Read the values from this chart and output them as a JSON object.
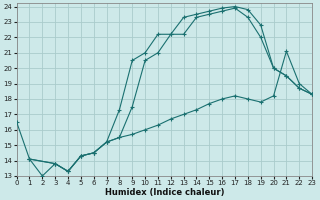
{
  "xlabel": "Humidex (Indice chaleur)",
  "background_color": "#cde9e9",
  "grid_color": "#aacccc",
  "line_color": "#1a7070",
  "xlim": [
    0,
    23
  ],
  "ylim": [
    13,
    24.2
  ],
  "xticks": [
    0,
    1,
    2,
    3,
    4,
    5,
    6,
    7,
    8,
    9,
    10,
    11,
    12,
    13,
    14,
    15,
    16,
    17,
    18,
    19,
    20,
    21,
    22,
    23
  ],
  "yticks": [
    13,
    14,
    15,
    16,
    17,
    18,
    19,
    20,
    21,
    22,
    23,
    24
  ],
  "curve1_x": [
    1,
    2,
    3,
    4,
    5,
    6,
    7,
    8,
    9,
    10,
    11,
    12,
    13,
    14,
    15,
    16,
    17,
    18,
    19,
    20,
    21,
    22,
    23
  ],
  "curve1_y": [
    14.1,
    13.0,
    13.8,
    13.3,
    14.3,
    14.5,
    15.2,
    17.3,
    20.5,
    21.0,
    22.2,
    22.2,
    23.3,
    23.5,
    23.7,
    23.9,
    24.0,
    23.8,
    22.8,
    20.0,
    19.5,
    18.7,
    18.3
  ],
  "curve2_x": [
    0,
    1,
    3,
    4,
    5,
    6,
    7,
    8,
    9,
    10,
    11,
    12,
    13,
    14,
    15,
    16,
    17,
    18,
    19,
    20,
    21,
    22,
    23
  ],
  "curve2_y": [
    16.5,
    14.1,
    13.8,
    13.3,
    14.3,
    14.5,
    15.2,
    15.5,
    17.5,
    20.5,
    21.0,
    22.2,
    22.2,
    23.3,
    23.5,
    23.7,
    23.9,
    23.3,
    22.0,
    20.0,
    19.5,
    18.7,
    18.3
  ],
  "curve3_x": [
    1,
    3,
    4,
    5,
    6,
    7,
    8,
    9,
    10,
    11,
    12,
    13,
    14,
    15,
    16,
    17,
    18,
    19,
    20,
    21,
    22,
    23
  ],
  "curve3_y": [
    14.1,
    13.8,
    13.3,
    14.3,
    14.5,
    15.2,
    15.5,
    15.7,
    16.0,
    16.3,
    16.7,
    17.0,
    17.3,
    17.7,
    18.0,
    18.2,
    18.0,
    17.8,
    18.2,
    21.1,
    19.0,
    18.3
  ]
}
